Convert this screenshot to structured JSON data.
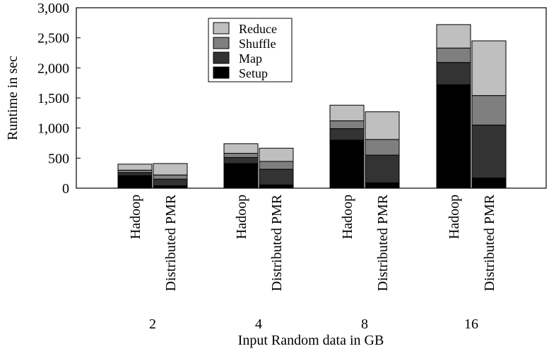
{
  "chart_data": {
    "type": "bar",
    "stacked": true,
    "title": "",
    "xlabel": "Input Random data in GB",
    "ylabel": "Runtime in sec",
    "ylim": [
      0,
      3000
    ],
    "yticks": [
      0,
      500,
      1000,
      1500,
      2000,
      2500,
      3000
    ],
    "ytick_labels": [
      "0",
      "500",
      "1,000",
      "1,500",
      "2,000",
      "2,500",
      "3,000"
    ],
    "grid": false,
    "legend_position": "top-center",
    "groups": [
      "2",
      "4",
      "8",
      "16"
    ],
    "systems": [
      "Hadoop",
      "Distributed PMR"
    ],
    "series": [
      {
        "name": "Setup",
        "color": "#000000",
        "values": [
          [
            210,
            40
          ],
          [
            410,
            55
          ],
          [
            800,
            90
          ],
          [
            1720,
            170
          ]
        ]
      },
      {
        "name": "Map",
        "color": "#333333",
        "values": [
          [
            50,
            110
          ],
          [
            100,
            260
          ],
          [
            190,
            460
          ],
          [
            370,
            880
          ]
        ]
      },
      {
        "name": "Shuffle",
        "color": "#7f7f7f",
        "values": [
          [
            40,
            70
          ],
          [
            70,
            130
          ],
          [
            130,
            260
          ],
          [
            240,
            490
          ]
        ]
      },
      {
        "name": "Reduce",
        "color": "#bfbfbf",
        "values": [
          [
            100,
            190
          ],
          [
            160,
            220
          ],
          [
            260,
            460
          ],
          [
            390,
            910
          ]
        ]
      }
    ]
  }
}
